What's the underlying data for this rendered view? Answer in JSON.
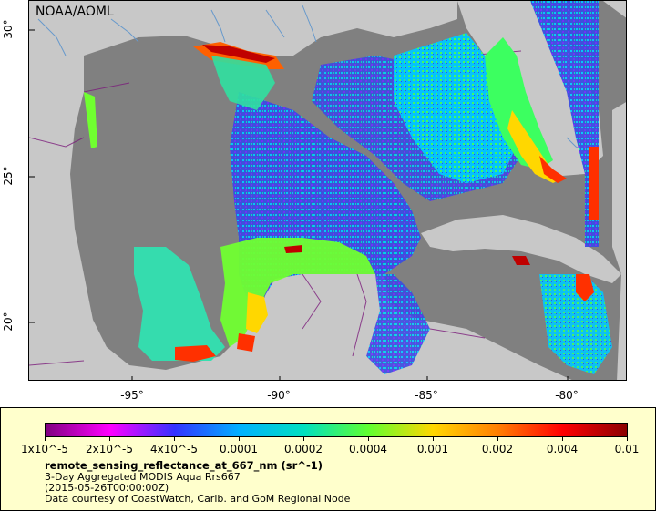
{
  "map": {
    "credit": "NOAA/AOML",
    "x_ticks": [
      "-95°",
      "-90°",
      "-85°",
      "-80°"
    ],
    "y_ticks": [
      "30°",
      "25°",
      "20°"
    ]
  },
  "legend": {
    "tick_labels": [
      "1x10^-5",
      "2x10^-5",
      "4x10^-5",
      "0.0001",
      "0.0002",
      "0.0004",
      "0.001",
      "0.002",
      "0.004",
      "0.01"
    ],
    "variable": "remote_sensing_reflectance_at_667_nm (sr^-1)",
    "dataset": "3-Day Aggregated MODIS Aqua Rrs667",
    "time": "(2015-05-26T00:00:00Z)",
    "courtesy": "Data courtesy of CoastWatch, Carib. and GoM Regional Node"
  },
  "colors": {
    "land": "#c8c8c8",
    "ocean_nodata": "#808080",
    "legend_bg": "#ffffcc",
    "colorscale": [
      "#800080",
      "#ff00ff",
      "#3333ff",
      "#00b0ff",
      "#00e0c0",
      "#60ff30",
      "#ffd700",
      "#ff7f00",
      "#ff0000",
      "#8b0000"
    ]
  }
}
